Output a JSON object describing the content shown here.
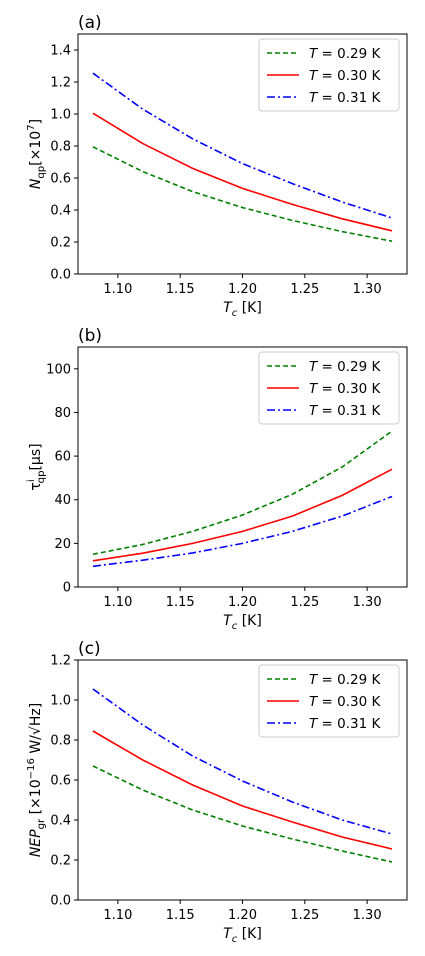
{
  "chart_data": [
    {
      "type": "line",
      "panel_label": "(a)",
      "ylabel_parts": [
        {
          "text": "N",
          "style": "italic"
        },
        {
          "text": "qp",
          "style": "sub"
        },
        {
          "text": "[×10",
          "style": "normal"
        },
        {
          "text": "7",
          "style": "sup"
        },
        {
          "text": "]",
          "style": "normal"
        }
      ],
      "xlabel_parts": [
        {
          "text": "T",
          "style": "italic"
        },
        {
          "text": "c",
          "style": "italic-sub"
        },
        {
          "text": " [K]",
          "style": "normal"
        }
      ],
      "xlim": [
        1.068,
        1.332
      ],
      "ylim": [
        0.0,
        1.5
      ],
      "xticks": [
        "1.10",
        "1.15",
        "1.20",
        "1.25",
        "1.30"
      ],
      "yticks": [
        "0.0",
        "0.2",
        "0.4",
        "0.6",
        "0.8",
        "1.0",
        "1.2",
        "1.4"
      ],
      "legend_position": "upper-right",
      "series": [
        {
          "name": "0.29 K",
          "color": "#008000",
          "dash": "dashed",
          "x": [
            1.08,
            1.12,
            1.16,
            1.2,
            1.24,
            1.28,
            1.32
          ],
          "y": [
            0.795,
            0.64,
            0.515,
            0.415,
            0.335,
            0.265,
            0.205
          ]
        },
        {
          "name": "0.30 K",
          "color": "#ff0000",
          "dash": "solid",
          "x": [
            1.08,
            1.12,
            1.16,
            1.2,
            1.24,
            1.28,
            1.32
          ],
          "y": [
            1.005,
            0.815,
            0.66,
            0.535,
            0.435,
            0.345,
            0.27
          ]
        },
        {
          "name": "0.31 K",
          "color": "#0000ff",
          "dash": "dashdot",
          "x": [
            1.08,
            1.12,
            1.16,
            1.2,
            1.24,
            1.28,
            1.32
          ],
          "y": [
            1.255,
            1.03,
            0.845,
            0.69,
            0.565,
            0.45,
            0.35
          ]
        }
      ]
    },
    {
      "type": "line",
      "panel_label": "(b)",
      "ylabel_parts": [
        {
          "text": "τ",
          "style": "normal"
        },
        {
          "text": "i",
          "style": "sup"
        },
        {
          "text": "qp",
          "style": "sub-after-sup"
        },
        {
          "text": "[μs]",
          "style": "normal"
        }
      ],
      "xlabel_parts": [
        {
          "text": "T",
          "style": "italic"
        },
        {
          "text": "c",
          "style": "italic-sub"
        },
        {
          "text": " [K]",
          "style": "normal"
        }
      ],
      "xlim": [
        1.068,
        1.332
      ],
      "ylim": [
        0,
        110
      ],
      "xticks": [
        "1.10",
        "1.15",
        "1.20",
        "1.25",
        "1.30"
      ],
      "yticks": [
        "0",
        "20",
        "40",
        "60",
        "80",
        "100"
      ],
      "legend_position": "upper-right",
      "series": [
        {
          "name": "0.29 K",
          "color": "#008000",
          "dash": "dashed",
          "x": [
            1.08,
            1.12,
            1.16,
            1.2,
            1.24,
            1.28,
            1.32
          ],
          "y": [
            15.0,
            19.5,
            25.5,
            33.0,
            42.5,
            55.0,
            71.5
          ]
        },
        {
          "name": "0.30 K",
          "color": "#ff0000",
          "dash": "solid",
          "x": [
            1.08,
            1.12,
            1.16,
            1.2,
            1.24,
            1.28,
            1.32
          ],
          "y": [
            12.0,
            15.5,
            20.0,
            25.5,
            32.5,
            42.0,
            54.0
          ]
        },
        {
          "name": "0.31 K",
          "color": "#0000ff",
          "dash": "dashdot",
          "x": [
            1.08,
            1.12,
            1.16,
            1.2,
            1.24,
            1.28,
            1.32
          ],
          "y": [
            9.5,
            12.3,
            15.6,
            20.0,
            25.5,
            32.5,
            41.5
          ]
        }
      ]
    },
    {
      "type": "line",
      "panel_label": "(c)",
      "ylabel_parts": [
        {
          "text": "NEP",
          "style": "italic"
        },
        {
          "text": "gr",
          "style": "sub"
        },
        {
          "text": " [×10",
          "style": "normal"
        },
        {
          "text": "−16",
          "style": "sup"
        },
        {
          "text": " W/√Hz]",
          "style": "normal"
        }
      ],
      "xlabel_parts": [
        {
          "text": "T",
          "style": "italic"
        },
        {
          "text": "c",
          "style": "italic-sub"
        },
        {
          "text": " [K]",
          "style": "normal"
        }
      ],
      "xlim": [
        1.068,
        1.332
      ],
      "ylim": [
        0.0,
        1.2
      ],
      "xticks": [
        "1.10",
        "1.15",
        "1.20",
        "1.25",
        "1.30"
      ],
      "yticks": [
        "0.0",
        "0.2",
        "0.4",
        "0.6",
        "0.8",
        "1.0",
        "1.2"
      ],
      "legend_position": "upper-right",
      "series": [
        {
          "name": "0.29 K",
          "color": "#008000",
          "dash": "dashed",
          "x": [
            1.08,
            1.12,
            1.16,
            1.2,
            1.24,
            1.28,
            1.32
          ],
          "y": [
            0.67,
            0.55,
            0.45,
            0.37,
            0.305,
            0.245,
            0.19
          ]
        },
        {
          "name": "0.30 K",
          "color": "#ff0000",
          "dash": "solid",
          "x": [
            1.08,
            1.12,
            1.16,
            1.2,
            1.24,
            1.28,
            1.32
          ],
          "y": [
            0.845,
            0.7,
            0.575,
            0.47,
            0.39,
            0.315,
            0.255
          ]
        },
        {
          "name": "0.31 K",
          "color": "#0000ff",
          "dash": "dashdot",
          "x": [
            1.08,
            1.12,
            1.16,
            1.2,
            1.24,
            1.28,
            1.32
          ],
          "y": [
            1.055,
            0.875,
            0.72,
            0.595,
            0.49,
            0.4,
            0.33
          ]
        }
      ]
    }
  ],
  "legend_prefix": "T",
  "legend_eq": " = "
}
